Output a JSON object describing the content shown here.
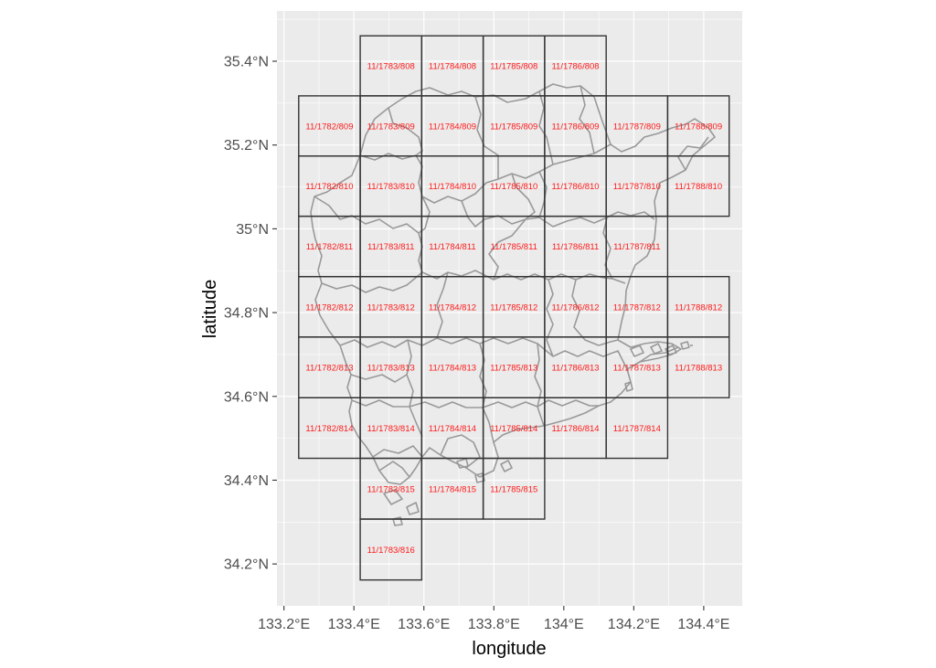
{
  "chart_data": {
    "type": "map",
    "xlabel": "longitude",
    "ylabel": "latitude",
    "xlim": [
      133.18,
      134.51
    ],
    "ylim": [
      34.1,
      35.52
    ],
    "x_ticks": [
      {
        "value": 133.2,
        "label": "133.2°E"
      },
      {
        "value": 133.4,
        "label": "133.4°E"
      },
      {
        "value": 133.6,
        "label": "133.6°E"
      },
      {
        "value": 133.8,
        "label": "133.8°E"
      },
      {
        "value": 134.0,
        "label": "134°E"
      },
      {
        "value": 134.2,
        "label": "134.2°E"
      },
      {
        "value": 134.4,
        "label": "134.4°E"
      }
    ],
    "y_ticks": [
      {
        "value": 34.2,
        "label": "34.2°N"
      },
      {
        "value": 34.4,
        "label": "34.4°N"
      },
      {
        "value": 34.6,
        "label": "34.6°N"
      },
      {
        "value": 34.8,
        "label": "34.8°N"
      },
      {
        "value": 35.0,
        "label": "35°N"
      },
      {
        "value": 35.2,
        "label": "35.2°N"
      },
      {
        "value": 35.4,
        "label": "35.4°N"
      }
    ],
    "tile_zoom": 11,
    "tile_size_deg": {
      "lon": 0.17578125,
      "lat": 0.1446
    },
    "colors": {
      "panel_background": "#ebebeb",
      "grid_major": "#ffffff",
      "tile_border": "#333333",
      "region_border": "#999999",
      "tile_label": "#ff1a1a"
    },
    "tiles": [
      {
        "x": 1783,
        "y": 808,
        "label": "11/1783/808"
      },
      {
        "x": 1784,
        "y": 808,
        "label": "11/1784/808"
      },
      {
        "x": 1785,
        "y": 808,
        "label": "11/1785/808"
      },
      {
        "x": 1786,
        "y": 808,
        "label": "11/1786/808"
      },
      {
        "x": 1782,
        "y": 809,
        "label": "11/1782/809"
      },
      {
        "x": 1783,
        "y": 809,
        "label": "11/1783/809"
      },
      {
        "x": 1784,
        "y": 809,
        "label": "11/1784/809"
      },
      {
        "x": 1785,
        "y": 809,
        "label": "11/1785/809"
      },
      {
        "x": 1786,
        "y": 809,
        "label": "11/1786/809"
      },
      {
        "x": 1787,
        "y": 809,
        "label": "11/1787/809"
      },
      {
        "x": 1788,
        "y": 809,
        "label": "11/1788/809"
      },
      {
        "x": 1782,
        "y": 810,
        "label": "11/1782/810"
      },
      {
        "x": 1783,
        "y": 810,
        "label": "11/1783/810"
      },
      {
        "x": 1784,
        "y": 810,
        "label": "11/1784/810"
      },
      {
        "x": 1785,
        "y": 810,
        "label": "11/1785/810"
      },
      {
        "x": 1786,
        "y": 810,
        "label": "11/1786/810"
      },
      {
        "x": 1787,
        "y": 810,
        "label": "11/1787/810"
      },
      {
        "x": 1788,
        "y": 810,
        "label": "11/1788/810"
      },
      {
        "x": 1782,
        "y": 811,
        "label": "11/1782/811"
      },
      {
        "x": 1783,
        "y": 811,
        "label": "11/1783/811"
      },
      {
        "x": 1784,
        "y": 811,
        "label": "11/1784/811"
      },
      {
        "x": 1785,
        "y": 811,
        "label": "11/1785/811"
      },
      {
        "x": 1786,
        "y": 811,
        "label": "11/1786/811"
      },
      {
        "x": 1787,
        "y": 811,
        "label": "11/1787/811"
      },
      {
        "x": 1782,
        "y": 812,
        "label": "11/1782/812"
      },
      {
        "x": 1783,
        "y": 812,
        "label": "11/1783/812"
      },
      {
        "x": 1784,
        "y": 812,
        "label": "11/1784/812"
      },
      {
        "x": 1785,
        "y": 812,
        "label": "11/1785/812"
      },
      {
        "x": 1786,
        "y": 812,
        "label": "11/1786/812"
      },
      {
        "x": 1787,
        "y": 812,
        "label": "11/1787/812"
      },
      {
        "x": 1788,
        "y": 812,
        "label": "11/1788/812"
      },
      {
        "x": 1782,
        "y": 813,
        "label": "11/1782/813"
      },
      {
        "x": 1783,
        "y": 813,
        "label": "11/1783/813"
      },
      {
        "x": 1784,
        "y": 813,
        "label": "11/1784/813"
      },
      {
        "x": 1785,
        "y": 813,
        "label": "11/1785/813"
      },
      {
        "x": 1786,
        "y": 813,
        "label": "11/1786/813"
      },
      {
        "x": 1787,
        "y": 813,
        "label": "11/1787/813"
      },
      {
        "x": 1788,
        "y": 813,
        "label": "11/1788/813"
      },
      {
        "x": 1782,
        "y": 814,
        "label": "11/1782/814"
      },
      {
        "x": 1783,
        "y": 814,
        "label": "11/1783/814"
      },
      {
        "x": 1784,
        "y": 814,
        "label": "11/1784/814"
      },
      {
        "x": 1785,
        "y": 814,
        "label": "11/1785/814"
      },
      {
        "x": 1786,
        "y": 814,
        "label": "11/1786/814"
      },
      {
        "x": 1787,
        "y": 814,
        "label": "11/1787/814"
      },
      {
        "x": 1783,
        "y": 815,
        "label": "11/1783/815"
      },
      {
        "x": 1784,
        "y": 815,
        "label": "11/1784/815"
      },
      {
        "x": 1785,
        "y": 815,
        "label": "11/1785/815"
      },
      {
        "x": 1783,
        "y": 816,
        "label": "11/1783/816"
      }
    ]
  }
}
